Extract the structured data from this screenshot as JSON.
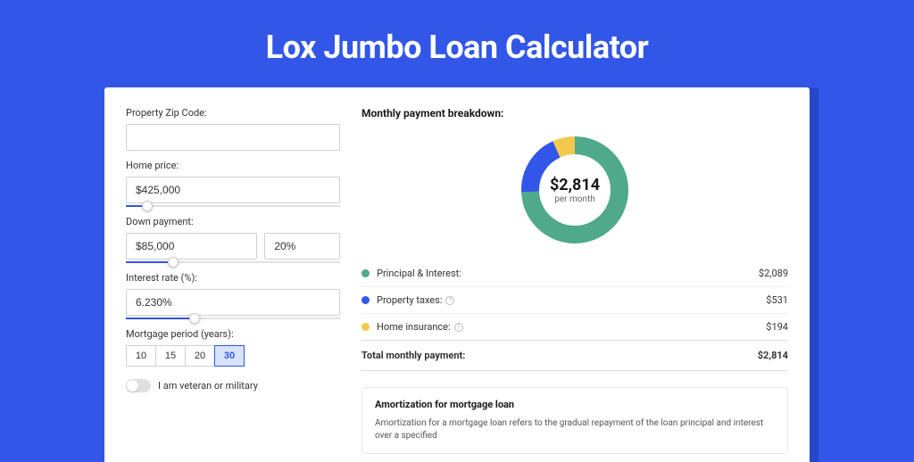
{
  "page": {
    "title": "Lox Jumbo Loan Calculator",
    "bg_color": "#3256e8",
    "card_bg": "#ffffff"
  },
  "form": {
    "zip": {
      "label": "Property Zip Code:",
      "value": ""
    },
    "home_price": {
      "label": "Home price:",
      "value": "$425,000",
      "slider_pct": 10
    },
    "down_payment": {
      "label": "Down payment:",
      "amount": "$85,000",
      "percent": "20%",
      "slider_pct": 22
    },
    "interest_rate": {
      "label": "Interest rate (%):",
      "value": "6.230%",
      "slider_pct": 32
    },
    "period": {
      "label": "Mortgage period (years):",
      "options": [
        "10",
        "15",
        "20",
        "30"
      ],
      "active": "30"
    },
    "veteran": {
      "label": "I am veteran or military",
      "on": false
    }
  },
  "breakdown": {
    "title": "Monthly payment breakdown:",
    "center_amount": "$2,814",
    "center_sub": "per month",
    "donut": {
      "radius": 50,
      "stroke": 20,
      "segments": [
        {
          "name": "principal_interest",
          "color": "#4fa98a",
          "fraction": 0.742
        },
        {
          "name": "property_taxes",
          "color": "#3256e8",
          "fraction": 0.189
        },
        {
          "name": "home_insurance",
          "color": "#f2c94c",
          "fraction": 0.069
        }
      ]
    },
    "rows": [
      {
        "dot": "#4fa98a",
        "label": "Principal & Interest:",
        "info": false,
        "value": "$2,089"
      },
      {
        "dot": "#3256e8",
        "label": "Property taxes:",
        "info": true,
        "value": "$531"
      },
      {
        "dot": "#f2c94c",
        "label": "Home insurance:",
        "info": true,
        "value": "$194"
      }
    ],
    "total": {
      "label": "Total monthly payment:",
      "value": "$2,814"
    }
  },
  "amortization": {
    "title": "Amortization for mortgage loan",
    "text": "Amortization for a mortgage loan refers to the gradual repayment of the loan principal and interest over a specified"
  }
}
